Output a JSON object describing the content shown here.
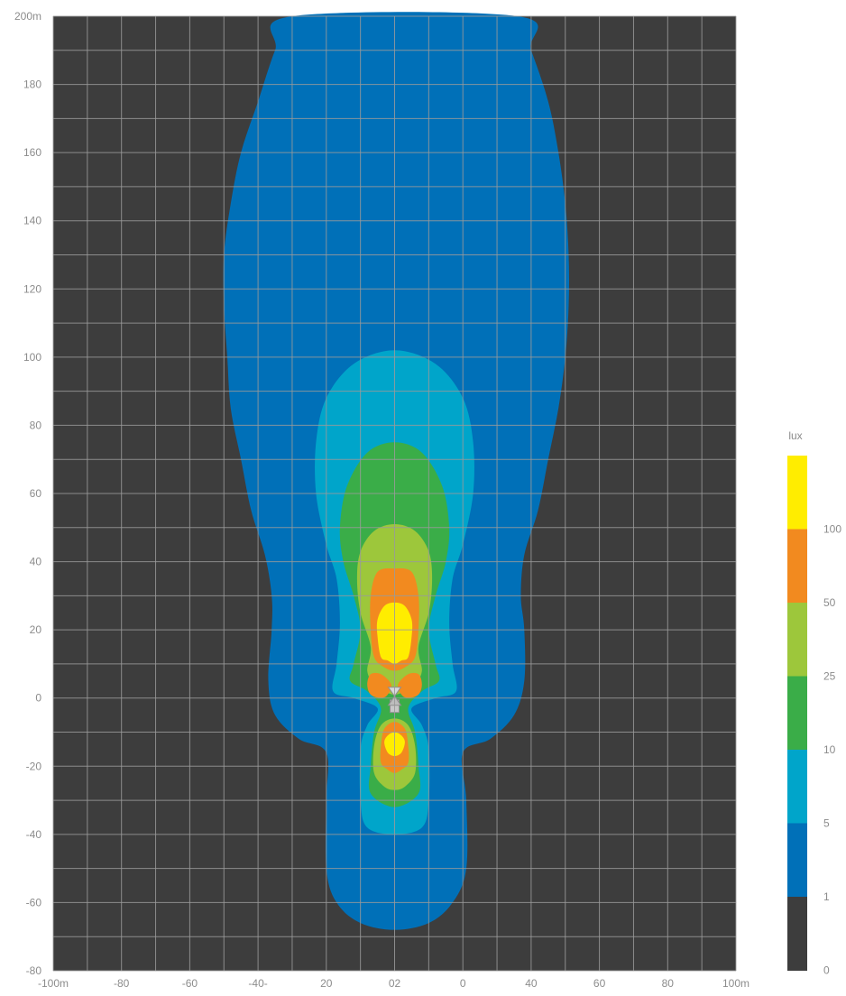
{
  "chart_data": {
    "type": "heatmap",
    "title": "",
    "xlabel": "",
    "ylabel": "",
    "xlim": [
      -100,
      100
    ],
    "ylim": [
      -80,
      200
    ],
    "grid": true,
    "background_color": "#3d3d3d",
    "grid_color": "#9a9a9a",
    "x_tick_labels": [
      "-100m",
      "-80",
      "-60",
      "-40-",
      "20",
      "02",
      "0",
      "40",
      "60",
      "80",
      "100m"
    ],
    "y_tick_labels": [
      "200m",
      "180",
      "160",
      "140",
      "120",
      "100",
      "80",
      "60",
      "40",
      "20",
      "0",
      "-20",
      "-40",
      "-60",
      "-80"
    ],
    "legend": {
      "title": "lux",
      "placement": "right",
      "levels": [
        {
          "label": "",
          "color": "#ffed00"
        },
        {
          "label": "100",
          "color": "#f28a1f"
        },
        {
          "label": "50",
          "color": "#9dc73b"
        },
        {
          "label": "25",
          "color": "#3aad48"
        },
        {
          "label": "10",
          "color": "#00a5ca"
        },
        {
          "label": "5",
          "color": "#0070b8"
        },
        {
          "label": "1",
          "color": "#3d3d3d"
        },
        {
          "label": "0",
          "color": ""
        }
      ]
    },
    "contours": [
      {
        "level": "1",
        "color": "#0070b8",
        "points": [
          [
            -30,
            200
          ],
          [
            -35,
            190
          ],
          [
            -40,
            175
          ],
          [
            -45,
            160
          ],
          [
            -48,
            145
          ],
          [
            -50,
            130
          ],
          [
            -50,
            115
          ],
          [
            -49,
            100
          ],
          [
            -48,
            85
          ],
          [
            -45,
            70
          ],
          [
            -42,
            55
          ],
          [
            -38,
            42
          ],
          [
            -36,
            30
          ],
          [
            -36,
            20
          ],
          [
            -37,
            5
          ],
          [
            -35,
            -5
          ],
          [
            -28,
            -12
          ],
          [
            -20,
            -16
          ],
          [
            -20,
            -30
          ],
          [
            -20,
            -50
          ],
          [
            -17,
            -60
          ],
          [
            -10,
            -66
          ],
          [
            0,
            -68
          ],
          [
            10,
            -66
          ],
          [
            17,
            -60
          ],
          [
            21,
            -50
          ],
          [
            21,
            -30
          ],
          [
            20,
            -16
          ],
          [
            28,
            -12
          ],
          [
            35,
            -5
          ],
          [
            38,
            5
          ],
          [
            38,
            20
          ],
          [
            37,
            30
          ],
          [
            38,
            42
          ],
          [
            42,
            55
          ],
          [
            45,
            70
          ],
          [
            48,
            85
          ],
          [
            50,
            100
          ],
          [
            51,
            115
          ],
          [
            51,
            130
          ],
          [
            50,
            145
          ],
          [
            48,
            160
          ],
          [
            45,
            175
          ],
          [
            40,
            190
          ],
          [
            36,
            200
          ]
        ]
      },
      {
        "level": "5",
        "color": "#00a5ca",
        "points": [
          [
            0,
            102
          ],
          [
            -12,
            98
          ],
          [
            -20,
            88
          ],
          [
            -23,
            75
          ],
          [
            -23,
            60
          ],
          [
            -20,
            45
          ],
          [
            -17,
            35
          ],
          [
            -16,
            22
          ],
          [
            -17,
            10
          ],
          [
            -18,
            2
          ],
          [
            -12,
            0
          ],
          [
            -5,
            -3
          ],
          [
            -8,
            -8
          ],
          [
            -10,
            -15
          ],
          [
            -10,
            -30
          ],
          [
            -8,
            -38
          ],
          [
            0,
            -40
          ],
          [
            8,
            -38
          ],
          [
            10,
            -30
          ],
          [
            10,
            -15
          ],
          [
            8,
            -8
          ],
          [
            5,
            -3
          ],
          [
            12,
            0
          ],
          [
            18,
            2
          ],
          [
            17,
            10
          ],
          [
            16,
            22
          ],
          [
            17,
            35
          ],
          [
            20,
            45
          ],
          [
            23,
            60
          ],
          [
            23,
            75
          ],
          [
            20,
            88
          ],
          [
            12,
            98
          ]
        ]
      },
      {
        "level": "10",
        "color": "#3aad48",
        "points": [
          [
            0,
            75
          ],
          [
            -8,
            72
          ],
          [
            -14,
            62
          ],
          [
            -16,
            50
          ],
          [
            -15,
            40
          ],
          [
            -12,
            30
          ],
          [
            -10,
            20
          ],
          [
            -12,
            10
          ],
          [
            -13,
            5
          ],
          [
            -8,
            2
          ],
          [
            -4,
            -3
          ],
          [
            -6,
            -10
          ],
          [
            -7,
            -20
          ],
          [
            -7,
            -28
          ],
          [
            0,
            -32
          ],
          [
            7,
            -28
          ],
          [
            7,
            -20
          ],
          [
            6,
            -10
          ],
          [
            4,
            -3
          ],
          [
            8,
            2
          ],
          [
            13,
            5
          ],
          [
            12,
            10
          ],
          [
            10,
            20
          ],
          [
            12,
            30
          ],
          [
            15,
            40
          ],
          [
            16,
            50
          ],
          [
            14,
            62
          ],
          [
            8,
            72
          ]
        ]
      },
      {
        "level": "25",
        "color": "#9dc73b",
        "points": [
          [
            0,
            51
          ],
          [
            -6,
            49
          ],
          [
            -10,
            43
          ],
          [
            -11,
            35
          ],
          [
            -10,
            25
          ],
          [
            -7,
            15
          ],
          [
            -8,
            8
          ],
          [
            -6,
            4
          ],
          [
            -3,
            2
          ],
          [
            0,
            1
          ],
          [
            3,
            2
          ],
          [
            6,
            4
          ],
          [
            8,
            8
          ],
          [
            7,
            15
          ],
          [
            10,
            25
          ],
          [
            11,
            35
          ],
          [
            10,
            43
          ],
          [
            6,
            49
          ]
        ]
      },
      {
        "level": "25",
        "color": "#9dc73b",
        "points": [
          [
            0,
            -6
          ],
          [
            -4,
            -8
          ],
          [
            -6,
            -14
          ],
          [
            -6,
            -22
          ],
          [
            -3,
            -26
          ],
          [
            0,
            -27
          ],
          [
            3,
            -26
          ],
          [
            6,
            -22
          ],
          [
            6,
            -14
          ],
          [
            4,
            -8
          ]
        ]
      },
      {
        "level": "50",
        "color": "#f28a1f",
        "points": [
          [
            0,
            38
          ],
          [
            -5,
            37
          ],
          [
            -7,
            30
          ],
          [
            -7,
            20
          ],
          [
            -6,
            12
          ],
          [
            -3,
            9
          ],
          [
            0,
            8
          ],
          [
            3,
            9
          ],
          [
            6,
            12
          ],
          [
            7,
            20
          ],
          [
            7,
            30
          ],
          [
            5,
            37
          ]
        ]
      },
      {
        "level": "50",
        "color": "#f28a1f",
        "points": [
          [
            -7,
            7
          ],
          [
            -4,
            7
          ],
          [
            -1,
            4
          ],
          [
            -2,
            1
          ],
          [
            -4,
            0
          ],
          [
            -7,
            1
          ],
          [
            -8,
            4
          ]
        ]
      },
      {
        "level": "50",
        "color": "#f28a1f",
        "points": [
          [
            7,
            7
          ],
          [
            4,
            7
          ],
          [
            1,
            4
          ],
          [
            2,
            1
          ],
          [
            4,
            0
          ],
          [
            7,
            1
          ],
          [
            8,
            4
          ]
        ]
      },
      {
        "level": "50",
        "color": "#f28a1f",
        "points": [
          [
            0,
            -7
          ],
          [
            -3,
            -9
          ],
          [
            -4,
            -14
          ],
          [
            -4,
            -19
          ],
          [
            -2,
            -21
          ],
          [
            0,
            -22
          ],
          [
            2,
            -21
          ],
          [
            4,
            -19
          ],
          [
            4,
            -14
          ],
          [
            3,
            -9
          ]
        ]
      },
      {
        "level": "100",
        "color": "#ffed00",
        "points": [
          [
            0,
            28
          ],
          [
            -3,
            27
          ],
          [
            -5,
            23
          ],
          [
            -5,
            18
          ],
          [
            -4,
            12
          ],
          [
            -2,
            11
          ],
          [
            0,
            10
          ],
          [
            2,
            11
          ],
          [
            4,
            12
          ],
          [
            5,
            18
          ],
          [
            5,
            23
          ],
          [
            3,
            27
          ]
        ]
      },
      {
        "level": "100",
        "color": "#ffed00",
        "points": [
          [
            0,
            -10
          ],
          [
            -2,
            -11
          ],
          [
            -3,
            -13
          ],
          [
            -2,
            -16
          ],
          [
            0,
            -17
          ],
          [
            2,
            -16
          ],
          [
            3,
            -13
          ],
          [
            2,
            -11
          ]
        ]
      }
    ]
  }
}
